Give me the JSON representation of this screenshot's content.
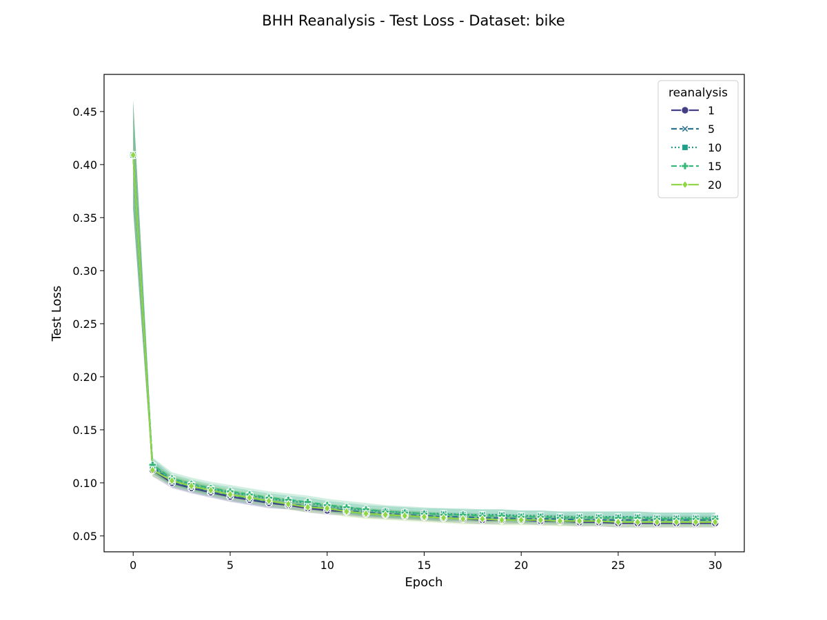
{
  "chart_data": {
    "type": "line",
    "title": "BHH Reanalysis - Test Loss - Dataset: bike",
    "xlabel": "Epoch",
    "ylabel": "Test Loss",
    "xlim": [
      -1.5,
      31.5
    ],
    "ylim": [
      0.035,
      0.485
    ],
    "x_ticks": [
      0,
      5,
      10,
      15,
      20,
      25,
      30
    ],
    "x_tick_labels": [
      "0",
      "5",
      "10",
      "15",
      "20",
      "25",
      "30"
    ],
    "y_ticks": [
      0.05,
      0.1,
      0.15,
      0.2,
      0.25,
      0.3,
      0.35,
      0.4,
      0.45
    ],
    "y_tick_labels": [
      "0.05",
      "0.10",
      "0.15",
      "0.20",
      "0.25",
      "0.30",
      "0.35",
      "0.40",
      "0.45"
    ],
    "grid": false,
    "legend": {
      "title": "reanalysis",
      "position": "top-right"
    },
    "x": [
      0,
      1,
      2,
      3,
      4,
      5,
      6,
      7,
      8,
      9,
      10,
      11,
      12,
      13,
      14,
      15,
      16,
      17,
      18,
      19,
      20,
      21,
      22,
      23,
      24,
      25,
      26,
      27,
      28,
      29,
      30
    ],
    "series": [
      {
        "name": "1",
        "color": "#433e85",
        "marker": "circle",
        "dash": "solid",
        "values": [
          0.409,
          0.112,
          0.1,
          0.095,
          0.091,
          0.087,
          0.084,
          0.081,
          0.079,
          0.076,
          0.074,
          0.073,
          0.071,
          0.07,
          0.069,
          0.068,
          0.067,
          0.066,
          0.065,
          0.065,
          0.065,
          0.064,
          0.064,
          0.063,
          0.063,
          0.062,
          0.062,
          0.062,
          0.062,
          0.062,
          0.062
        ],
        "band": [
          0.052,
          0.006,
          0.005,
          0.005,
          0.005,
          0.005,
          0.005,
          0.005,
          0.004,
          0.004,
          0.004,
          0.004,
          0.004,
          0.004,
          0.004,
          0.004,
          0.004,
          0.004,
          0.004,
          0.004,
          0.004,
          0.004,
          0.004,
          0.004,
          0.004,
          0.004,
          0.004,
          0.004,
          0.004,
          0.004,
          0.004
        ]
      },
      {
        "name": "5",
        "color": "#2c728e",
        "marker": "x",
        "dash": "dashed",
        "values": [
          0.409,
          0.115,
          0.101,
          0.096,
          0.092,
          0.088,
          0.085,
          0.082,
          0.08,
          0.078,
          0.076,
          0.074,
          0.072,
          0.071,
          0.07,
          0.069,
          0.068,
          0.068,
          0.067,
          0.067,
          0.066,
          0.066,
          0.066,
          0.065,
          0.065,
          0.065,
          0.065,
          0.065,
          0.065,
          0.065,
          0.065
        ],
        "band": [
          0.05,
          0.006,
          0.005,
          0.005,
          0.005,
          0.005,
          0.005,
          0.005,
          0.005,
          0.004,
          0.004,
          0.004,
          0.004,
          0.004,
          0.004,
          0.004,
          0.004,
          0.004,
          0.004,
          0.004,
          0.004,
          0.004,
          0.004,
          0.004,
          0.004,
          0.004,
          0.004,
          0.004,
          0.004,
          0.004,
          0.004
        ]
      },
      {
        "name": "10",
        "color": "#1f9e89",
        "marker": "square",
        "dash": "dotted",
        "values": [
          0.409,
          0.116,
          0.103,
          0.098,
          0.094,
          0.091,
          0.088,
          0.085,
          0.083,
          0.081,
          0.078,
          0.076,
          0.074,
          0.073,
          0.072,
          0.071,
          0.071,
          0.07,
          0.07,
          0.07,
          0.069,
          0.069,
          0.068,
          0.068,
          0.068,
          0.068,
          0.068,
          0.067,
          0.067,
          0.067,
          0.067
        ],
        "band": [
          0.052,
          0.007,
          0.005,
          0.005,
          0.005,
          0.005,
          0.005,
          0.005,
          0.005,
          0.005,
          0.005,
          0.005,
          0.005,
          0.005,
          0.005,
          0.005,
          0.005,
          0.005,
          0.005,
          0.005,
          0.005,
          0.005,
          0.005,
          0.005,
          0.005,
          0.005,
          0.005,
          0.005,
          0.005,
          0.005,
          0.005
        ]
      },
      {
        "name": "15",
        "color": "#35b779",
        "marker": "plus",
        "dash": "dashed",
        "values": [
          0.409,
          0.117,
          0.104,
          0.099,
          0.095,
          0.092,
          0.089,
          0.086,
          0.084,
          0.082,
          0.079,
          0.077,
          0.075,
          0.073,
          0.072,
          0.071,
          0.07,
          0.07,
          0.069,
          0.069,
          0.068,
          0.068,
          0.067,
          0.067,
          0.067,
          0.067,
          0.067,
          0.066,
          0.066,
          0.066,
          0.066
        ],
        "band": [
          0.052,
          0.007,
          0.006,
          0.006,
          0.006,
          0.006,
          0.006,
          0.006,
          0.006,
          0.006,
          0.006,
          0.006,
          0.006,
          0.006,
          0.006,
          0.006,
          0.006,
          0.006,
          0.006,
          0.006,
          0.006,
          0.006,
          0.006,
          0.006,
          0.006,
          0.006,
          0.006,
          0.006,
          0.006,
          0.006,
          0.006
        ]
      },
      {
        "name": "20",
        "color": "#8fd744",
        "marker": "diamond",
        "dash": "solid",
        "values": [
          0.409,
          0.112,
          0.102,
          0.097,
          0.093,
          0.089,
          0.086,
          0.083,
          0.08,
          0.077,
          0.076,
          0.073,
          0.071,
          0.07,
          0.069,
          0.068,
          0.067,
          0.066,
          0.066,
          0.065,
          0.065,
          0.065,
          0.064,
          0.064,
          0.064,
          0.063,
          0.063,
          0.063,
          0.063,
          0.063,
          0.063
        ],
        "band": [
          0.05,
          0.006,
          0.005,
          0.005,
          0.005,
          0.005,
          0.005,
          0.005,
          0.005,
          0.005,
          0.005,
          0.005,
          0.005,
          0.005,
          0.005,
          0.005,
          0.005,
          0.005,
          0.005,
          0.005,
          0.005,
          0.005,
          0.005,
          0.005,
          0.005,
          0.005,
          0.005,
          0.005,
          0.005,
          0.005,
          0.005
        ]
      }
    ]
  }
}
